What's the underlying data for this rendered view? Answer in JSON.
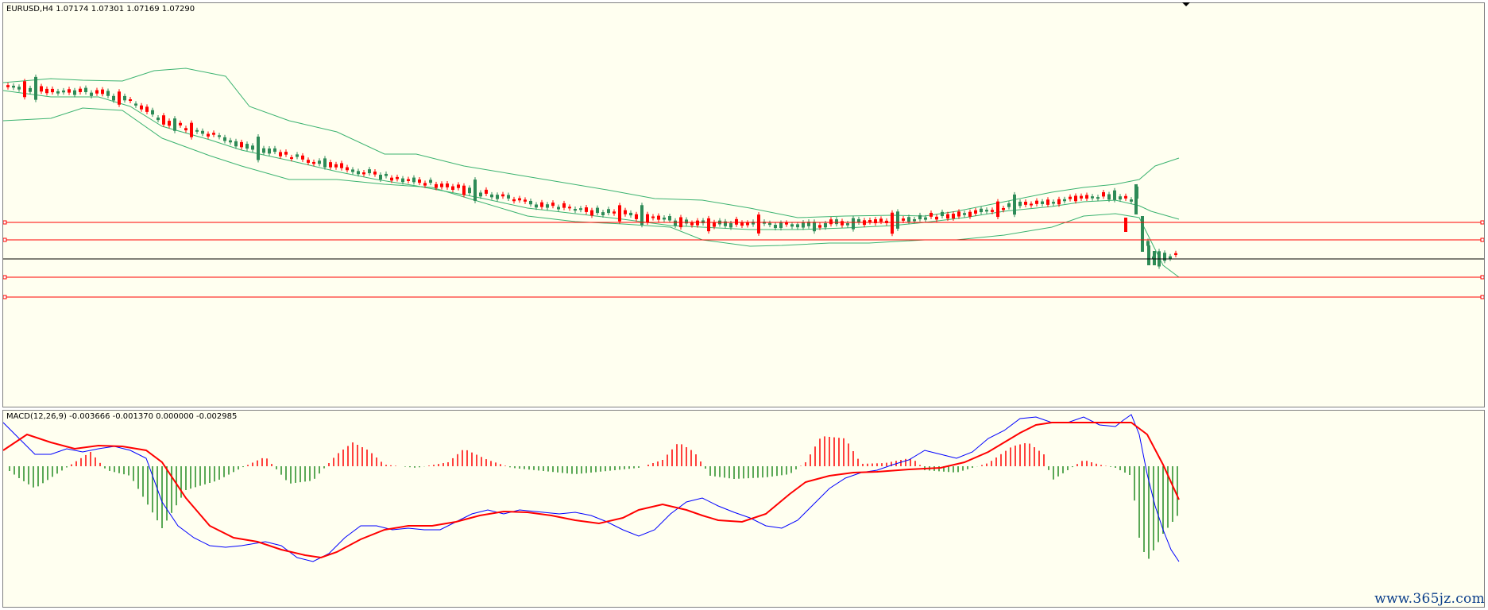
{
  "main_chart": {
    "label": "EURUSD,H4  1.07174 1.07301 1.07169 1.07290",
    "symbol": "EURUSD",
    "timeframe": "H4",
    "colors": {
      "background": "#fffff0",
      "bull_candle": "#ff0000",
      "bear_candle": "#2e8b57",
      "bands": "#3cb371",
      "horizontal_levels": "#ff0000",
      "current_price_line": "#000000"
    }
  },
  "macd_chart": {
    "label": "MACD(12,26,9) -0.003666 -0.001370 0.000000 -0.002985",
    "colors": {
      "macd_line": "#0000ff",
      "signal_line": "#ff0000",
      "positive_bars": "#ff0000",
      "negative_bars": "#228b22"
    }
  },
  "watermark": "www.365jz.com",
  "chart_data": [
    {
      "type": "line",
      "title": "EURUSD,H4",
      "indicator": "Bollinger Bands with candlesticks",
      "grid": false,
      "horizontal_levels_count": 4
    },
    {
      "type": "bar",
      "title": "MACD(12,26,9)",
      "values": {
        "macd": -0.003666,
        "signal": -0.00137,
        "level": 0.0,
        "histogram": -0.002985
      },
      "grid": false
    }
  ]
}
